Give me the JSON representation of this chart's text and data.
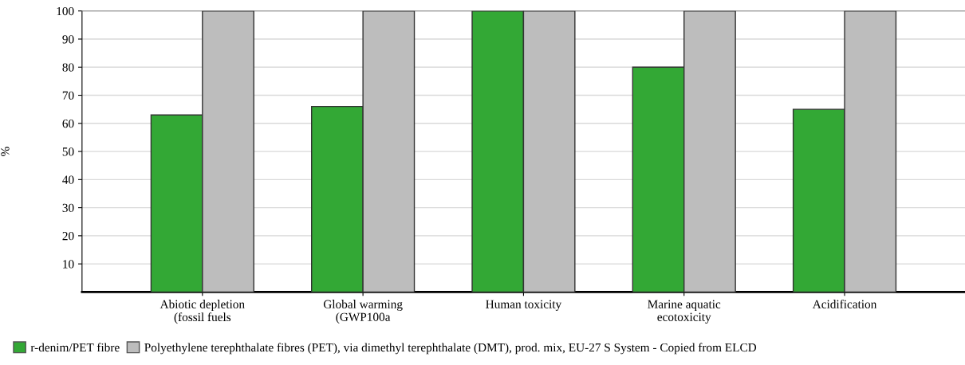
{
  "chart_data": {
    "type": "bar",
    "ylabel": "%",
    "categories": [
      "Abiotic depletion\n(fossil fuels",
      "Global warming\n(GWP100a",
      "Human toxicity",
      "Marine aquatic\necotoxicity",
      "Acidification"
    ],
    "series": [
      {
        "name": "r-denim/PET fibre",
        "color": "#33a835",
        "values": [
          63,
          66,
          100,
          80,
          65
        ]
      },
      {
        "name": "Polyethylene terephthalate fibres (PET), via dimethyl terephthalate (DMT), prod. mix, EU-27 S System - Copied from ELCD",
        "color": "#bdbdbd",
        "values": [
          100,
          100,
          100,
          100,
          100
        ]
      }
    ],
    "ylim": [
      0,
      100
    ],
    "yticks": [
      10,
      20,
      30,
      40,
      50,
      60,
      70,
      80,
      90,
      100
    ],
    "grid": "y",
    "legend": "bottom"
  }
}
